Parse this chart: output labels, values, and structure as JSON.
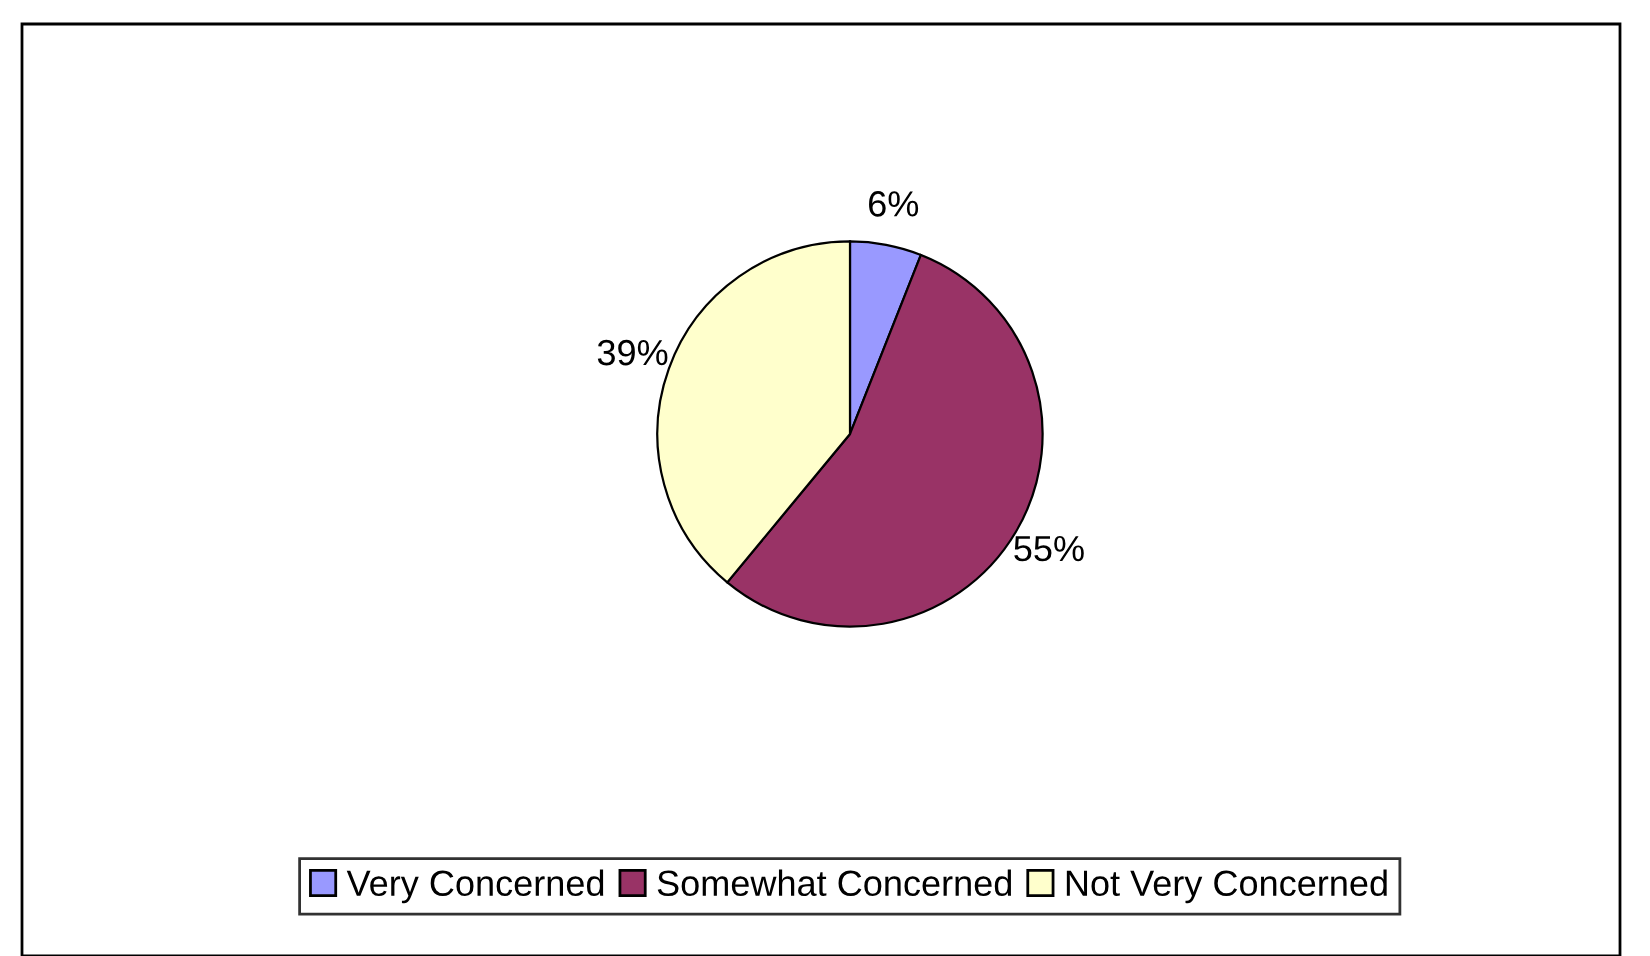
{
  "chart_data": {
    "type": "pie",
    "categories": [
      "Very Concerned",
      "Somewhat Concerned",
      "Not Very Concerned"
    ],
    "values": [
      6,
      55,
      39
    ],
    "colors": [
      "#9999ff",
      "#993366",
      "#ffffcc"
    ],
    "value_labels": [
      "6%",
      "55%",
      "39%"
    ],
    "legend": "bottom"
  }
}
